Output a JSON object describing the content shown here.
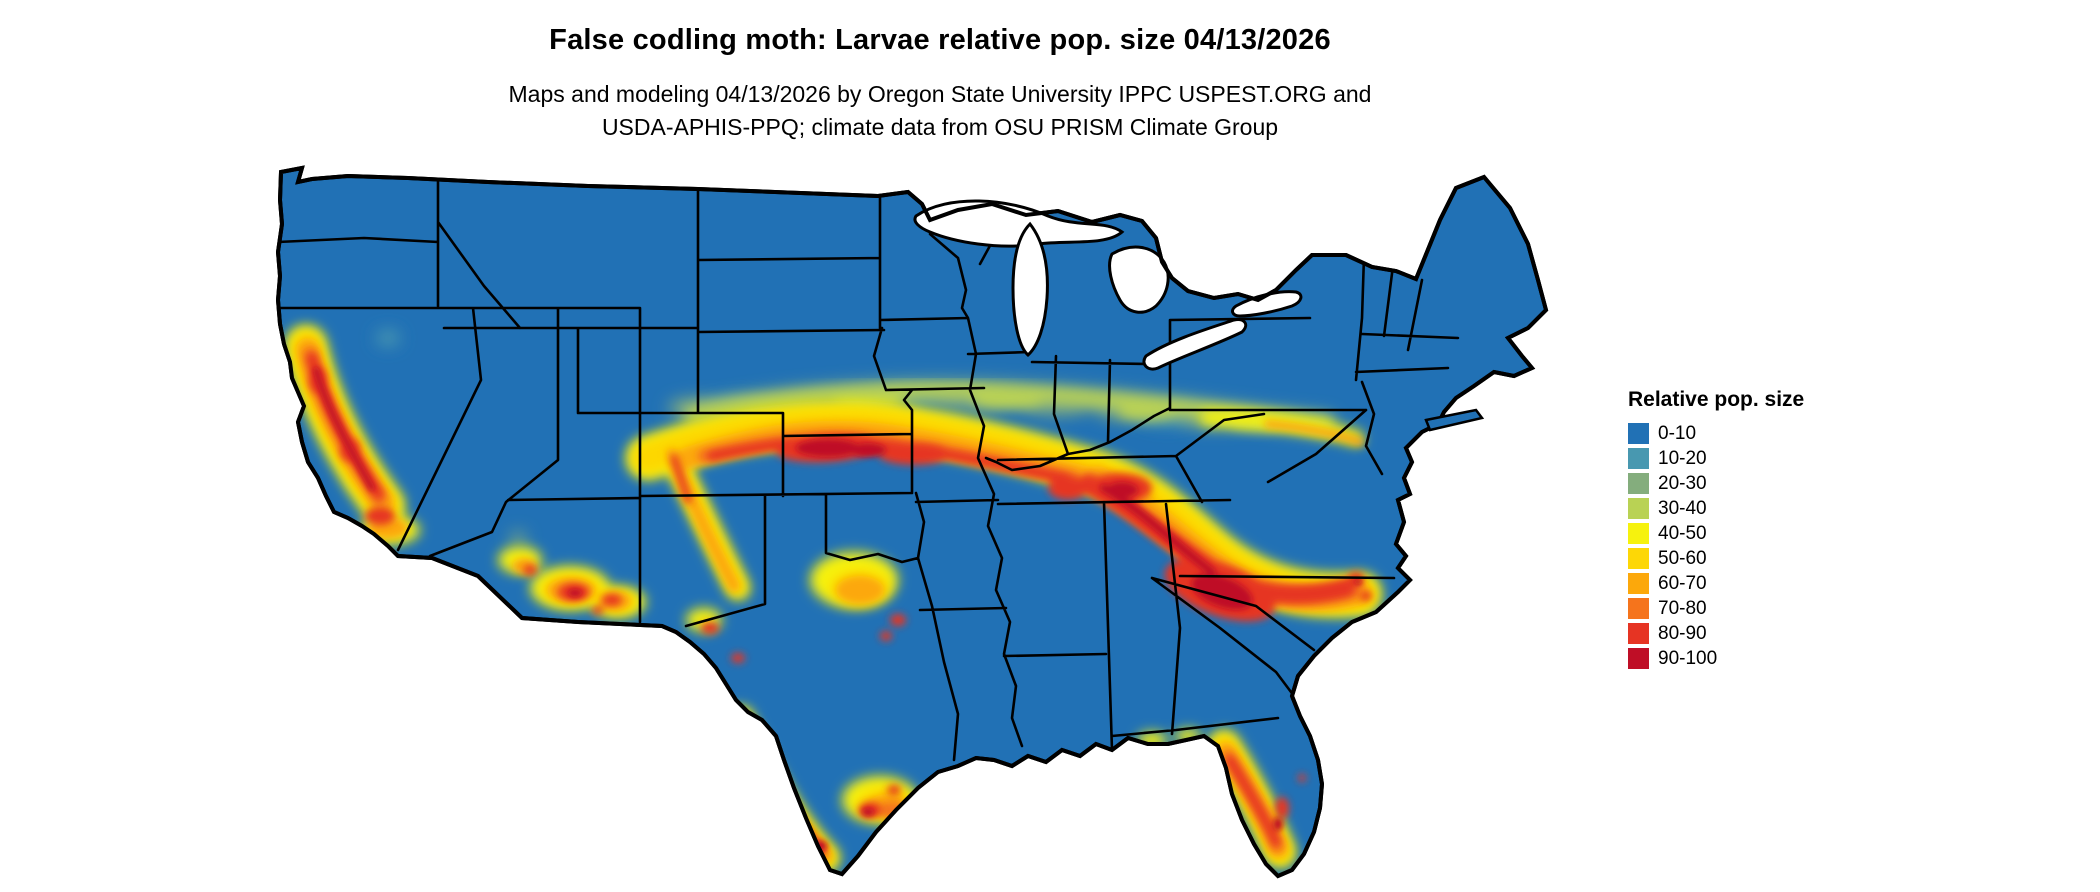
{
  "header": {
    "title": "False codling moth: Larvae relative pop. size 04/13/2026",
    "subtitle_line1": "Maps and modeling 04/13/2026 by Oregon State University IPPC USPEST.ORG and",
    "subtitle_line2": "USDA-APHIS-PPQ; climate data from OSU PRISM Climate Group"
  },
  "legend": {
    "title": "Relative pop. size",
    "items": [
      {
        "label": "0-10",
        "color": "blue"
      },
      {
        "label": "10-20",
        "color": "teal"
      },
      {
        "label": "20-30",
        "color": "green"
      },
      {
        "label": "30-40",
        "color": "yellowgreen"
      },
      {
        "label": "40-50",
        "color": "yellow"
      },
      {
        "label": "50-60",
        "color": "gold"
      },
      {
        "label": "60-70",
        "color": "orange"
      },
      {
        "label": "70-80",
        "color": "deeporange"
      },
      {
        "label": "80-90",
        "color": "red"
      },
      {
        "label": "90-100",
        "color": "darkred"
      }
    ]
  },
  "colors": {
    "blue": "#2171b5",
    "teal": "#4898b0",
    "green": "#84ad7d",
    "yellowgreen": "#b9d254",
    "yellow": "#f6f20e",
    "gold": "#fdd706",
    "orange": "#fca80b",
    "deeporange": "#f5741c",
    "red": "#e63423",
    "darkred": "#bf0e26"
  }
}
